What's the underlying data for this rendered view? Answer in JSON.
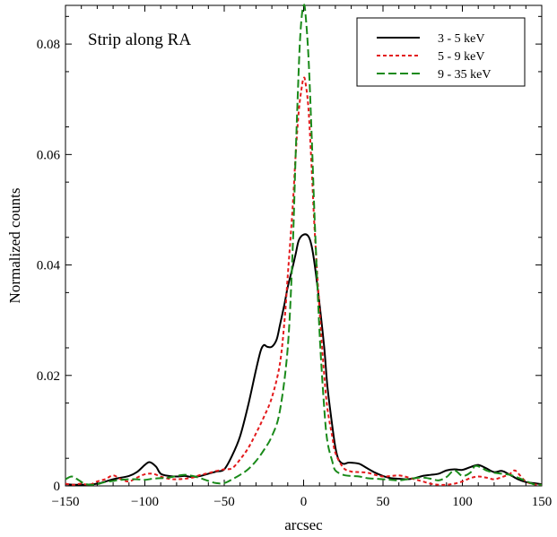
{
  "chart_data": {
    "type": "line",
    "title": "",
    "annotation": "Strip along RA",
    "xlabel": "arcsec",
    "ylabel": "Normalized counts",
    "xlim": [
      -150,
      150
    ],
    "ylim": [
      0,
      0.087
    ],
    "xticks": [
      -150,
      -100,
      -50,
      0,
      50,
      100,
      150
    ],
    "yticks": [
      0,
      0.02,
      0.04,
      0.06,
      0.08
    ],
    "ytick_labels": [
      "0",
      "0.02",
      "0.04",
      "0.06",
      "0.08"
    ],
    "legend_position": "top-right",
    "grid": false,
    "series": [
      {
        "name": "3 - 5 keV",
        "color": "#000000",
        "dash": "solid",
        "x": [
          -150,
          -140,
          -130,
          -120,
          -110,
          -105,
          -100,
          -97,
          -93,
          -90,
          -85,
          -80,
          -75,
          -70,
          -65,
          -60,
          -55,
          -50,
          -45,
          -40,
          -35,
          -30,
          -27,
          -25,
          -23,
          -20,
          -17,
          -15,
          -12,
          -10,
          -7,
          -5,
          -3,
          0,
          3,
          5,
          7,
          10,
          13,
          15,
          18,
          20,
          22,
          25,
          28,
          30,
          35,
          40,
          45,
          50,
          55,
          60,
          65,
          70,
          75,
          80,
          85,
          90,
          95,
          100,
          105,
          110,
          115,
          120,
          125,
          130,
          135,
          140,
          145,
          150
        ],
        "y": [
          0.0003,
          0.0002,
          0.0004,
          0.0012,
          0.0018,
          0.0025,
          0.0038,
          0.0043,
          0.0035,
          0.0022,
          0.0018,
          0.0017,
          0.0018,
          0.0016,
          0.0018,
          0.0022,
          0.0026,
          0.003,
          0.0055,
          0.009,
          0.0145,
          0.021,
          0.0245,
          0.0255,
          0.0252,
          0.0252,
          0.0265,
          0.029,
          0.033,
          0.036,
          0.0395,
          0.042,
          0.0445,
          0.0455,
          0.0452,
          0.0435,
          0.04,
          0.033,
          0.025,
          0.018,
          0.011,
          0.007,
          0.0048,
          0.004,
          0.0042,
          0.0042,
          0.004,
          0.0032,
          0.0024,
          0.0018,
          0.0014,
          0.0013,
          0.0012,
          0.0014,
          0.0018,
          0.002,
          0.0022,
          0.0028,
          0.003,
          0.0029,
          0.0034,
          0.0038,
          0.0032,
          0.0025,
          0.0027,
          0.002,
          0.0012,
          0.0007,
          0.0005,
          0.0003
        ]
      },
      {
        "name": "5 - 9 keV",
        "color": "#e31a1c",
        "dash": "4,3",
        "x": [
          -150,
          -145,
          -140,
          -135,
          -130,
          -125,
          -120,
          -115,
          -110,
          -105,
          -100,
          -95,
          -90,
          -85,
          -80,
          -75,
          -70,
          -65,
          -60,
          -55,
          -50,
          -45,
          -40,
          -35,
          -30,
          -25,
          -20,
          -15,
          -12,
          -10,
          -7,
          -5,
          -3,
          -1,
          0,
          1,
          3,
          5,
          7,
          10,
          13,
          15,
          18,
          20,
          25,
          30,
          35,
          40,
          45,
          50,
          55,
          60,
          65,
          70,
          75,
          80,
          85,
          90,
          95,
          100,
          105,
          110,
          115,
          120,
          125,
          130,
          133,
          136,
          140,
          145,
          150
        ],
        "y": [
          0.0004,
          0.0002,
          0.0004,
          0.0002,
          0.0008,
          0.0012,
          0.0019,
          0.0012,
          0.0008,
          0.0015,
          0.0021,
          0.0022,
          0.0017,
          0.0013,
          0.0012,
          0.0013,
          0.0015,
          0.002,
          0.0023,
          0.0027,
          0.003,
          0.0032,
          0.0048,
          0.0068,
          0.0095,
          0.0125,
          0.016,
          0.022,
          0.03,
          0.038,
          0.05,
          0.06,
          0.068,
          0.0725,
          0.0738,
          0.0733,
          0.0685,
          0.058,
          0.046,
          0.032,
          0.02,
          0.014,
          0.009,
          0.006,
          0.0033,
          0.0026,
          0.0025,
          0.0024,
          0.002,
          0.0017,
          0.0018,
          0.0019,
          0.0016,
          0.0012,
          0.0008,
          0.0004,
          0.0002,
          0.0002,
          0.0004,
          0.0008,
          0.0014,
          0.0017,
          0.0015,
          0.0012,
          0.0016,
          0.0022,
          0.0028,
          0.002,
          0.0008,
          0.0003,
          0.0002
        ]
      },
      {
        "name": "9 - 35 keV",
        "color": "#1a8a1a",
        "dash": "9,4",
        "x": [
          -150,
          -146,
          -142,
          -138,
          -134,
          -130,
          -125,
          -120,
          -115,
          -110,
          -105,
          -100,
          -95,
          -90,
          -85,
          -80,
          -75,
          -70,
          -65,
          -60,
          -55,
          -50,
          -45,
          -40,
          -35,
          -30,
          -25,
          -20,
          -15,
          -10,
          -7,
          -5,
          -3,
          -2,
          -1,
          0,
          1,
          3,
          5,
          7,
          10,
          13,
          15,
          18,
          20,
          25,
          30,
          35,
          40,
          45,
          50,
          55,
          60,
          65,
          70,
          75,
          80,
          85,
          90,
          95,
          100,
          105,
          108,
          112,
          115,
          120,
          125,
          130,
          135,
          140,
          145,
          150
        ],
        "y": [
          0.0012,
          0.0017,
          0.0011,
          0.0004,
          0.0002,
          0.0003,
          0.0007,
          0.0009,
          0.0011,
          0.0012,
          0.0012,
          0.0011,
          0.0013,
          0.0014,
          0.0015,
          0.0018,
          0.002,
          0.0018,
          0.0014,
          0.0009,
          0.0005,
          0.0005,
          0.0012,
          0.002,
          0.003,
          0.0045,
          0.0065,
          0.009,
          0.0135,
          0.025,
          0.042,
          0.06,
          0.076,
          0.082,
          0.0855,
          0.087,
          0.086,
          0.078,
          0.064,
          0.048,
          0.028,
          0.014,
          0.008,
          0.0045,
          0.0028,
          0.002,
          0.0018,
          0.0017,
          0.0014,
          0.0013,
          0.0012,
          0.0011,
          0.001,
          0.0012,
          0.0014,
          0.0015,
          0.0013,
          0.001,
          0.0016,
          0.0028,
          0.0018,
          0.0024,
          0.0036,
          0.0033,
          0.0028,
          0.0024,
          0.0022,
          0.002,
          0.0015,
          0.0009,
          0.0003,
          0.0002
        ]
      }
    ]
  }
}
